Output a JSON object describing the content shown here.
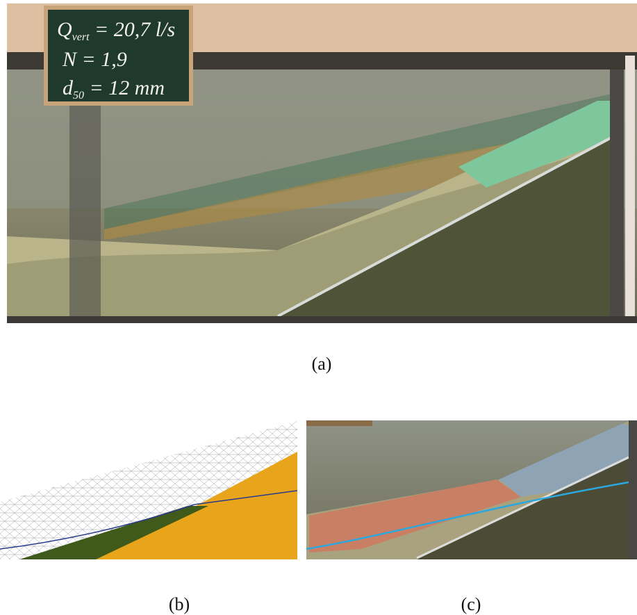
{
  "panels": [
    {
      "caption": "(a)",
      "board": [
        {
          "main": "Q",
          "sub": "vert",
          "rest": " = 20,7 l/s"
        },
        {
          "main": "N = 1,9",
          "sub": "",
          "rest": ""
        },
        {
          "main": "d",
          "sub": "50",
          "rest": " = 12 mm"
        }
      ]
    },
    {
      "caption": "(b)"
    },
    {
      "caption": "(c)"
    }
  ]
}
